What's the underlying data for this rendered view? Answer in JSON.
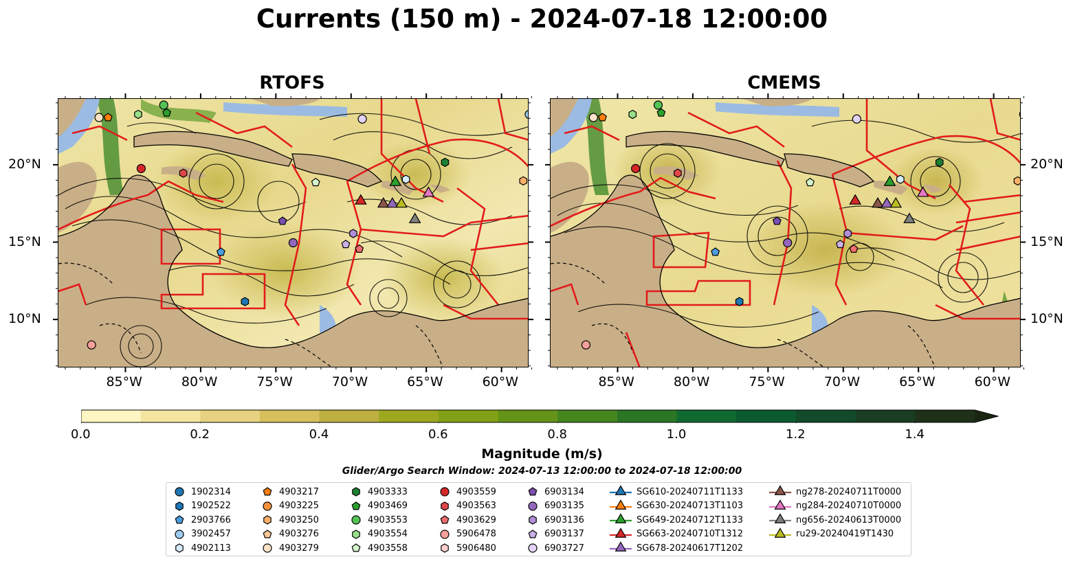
{
  "title": "Currents (150 m) - 2024-07-18 12:00:00",
  "panels": [
    {
      "title": "RTOFS"
    },
    {
      "title": "CMEMS"
    }
  ],
  "lon_ticks": [
    "85°W",
    "80°W",
    "75°W",
    "70°W",
    "65°W",
    "60°W"
  ],
  "lat_ticks": [
    "20°N",
    "15°N",
    "10°N"
  ],
  "map_extent": {
    "lon": [
      -89.5,
      -58.2
    ],
    "lat": [
      6.9,
      24.3
    ]
  },
  "colorbar": {
    "label": "Magnitude (m/s)",
    "ticks": [
      "0.0",
      "0.2",
      "0.4",
      "0.6",
      "0.8",
      "1.0",
      "1.2",
      "1.4"
    ],
    "range": [
      0,
      1.5
    ],
    "extend": "max",
    "colors": [
      "#fdf6c3",
      "#f3e4a0",
      "#e6d280",
      "#d6bf5c",
      "#bdb040",
      "#9da81f",
      "#82a015",
      "#649318",
      "#45851e",
      "#2a7623",
      "#0f6930",
      "#0b5a30",
      "#124a2a",
      "#1a3c23",
      "#1e3018"
    ]
  },
  "search_window": "Glider/Argo Search Window: 2024-07-13 12:00:00 to 2024-07-18 12:00:00",
  "legend": {
    "columns": [
      [
        {
          "label": "1902314",
          "marker": "circle",
          "color": "#1f77b4"
        },
        {
          "label": "1902522",
          "marker": "hexagon",
          "color": "#1f77b4"
        },
        {
          "label": "2903766",
          "marker": "pentagon",
          "color": "#4a9ee0"
        },
        {
          "label": "3902457",
          "marker": "circle",
          "color": "#9fcbee"
        },
        {
          "label": "4902113",
          "marker": "hexagon",
          "color": "#d6ebfb"
        }
      ],
      [
        {
          "label": "4903217",
          "marker": "pentagon",
          "color": "#ff7f0e"
        },
        {
          "label": "4903225",
          "marker": "circle",
          "color": "#f8903a"
        },
        {
          "label": "4903250",
          "marker": "hexagon",
          "color": "#fbb06a"
        },
        {
          "label": "4903276",
          "marker": "pentagon",
          "color": "#fcc995"
        },
        {
          "label": "4903279",
          "marker": "circle",
          "color": "#fde3c7"
        }
      ],
      [
        {
          "label": "4903333",
          "marker": "hexagon",
          "color": "#1d7f34"
        },
        {
          "label": "4903469",
          "marker": "pentagon",
          "color": "#2ca02c"
        },
        {
          "label": "4903553",
          "marker": "circle",
          "color": "#55c255"
        },
        {
          "label": "4903554",
          "marker": "hexagon",
          "color": "#98df8a"
        },
        {
          "label": "4903558",
          "marker": "pentagon",
          "color": "#d4f5cc"
        }
      ],
      [
        {
          "label": "4903559",
          "marker": "circle",
          "color": "#d62728"
        },
        {
          "label": "4903563",
          "marker": "hexagon",
          "color": "#e04848"
        },
        {
          "label": "4903629",
          "marker": "pentagon",
          "color": "#ee6d6d"
        },
        {
          "label": "5906478",
          "marker": "circle",
          "color": "#f5a09a"
        },
        {
          "label": "5906480",
          "marker": "hexagon",
          "color": "#fbd0cc"
        }
      ],
      [
        {
          "label": "6903134",
          "marker": "pentagon",
          "color": "#7b4fb0"
        },
        {
          "label": "6903135",
          "marker": "circle",
          "color": "#9467bd"
        },
        {
          "label": "6903136",
          "marker": "hexagon",
          "color": "#b08fd6"
        },
        {
          "label": "6903137",
          "marker": "pentagon",
          "color": "#c9b1e6"
        },
        {
          "label": "6903727",
          "marker": "circle",
          "color": "#e2d3f5"
        }
      ],
      [
        {
          "label": "SG610-20240711T1133",
          "marker": "triangle",
          "color": "#1f77b4"
        },
        {
          "label": "SG630-20240713T1103",
          "marker": "triangle",
          "color": "#ff7f0e"
        },
        {
          "label": "SG649-20240712T1133",
          "marker": "triangle",
          "color": "#2ca02c"
        },
        {
          "label": "SG663-20240710T1312",
          "marker": "triangle",
          "color": "#d62728"
        },
        {
          "label": "SG678-20240617T1202",
          "marker": "triangle",
          "color": "#9467bd"
        }
      ],
      [
        {
          "label": "ng278-20240711T0000",
          "marker": "triangle",
          "color": "#8c564b"
        },
        {
          "label": "ng284-20240710T0000",
          "marker": "triangle",
          "color": "#e377c2"
        },
        {
          "label": "ng656-20240613T0000",
          "marker": "triangle",
          "color": "#7f7f7f"
        },
        {
          "label": "ru29-20240419T1430",
          "marker": "triangle",
          "color": "#bcbd22"
        }
      ]
    ]
  },
  "platforms_on_map": [
    {
      "label": "3902457",
      "lon": -58.2,
      "lat": 23.3
    },
    {
      "label": "4903279",
      "lon": -86.8,
      "lat": 23.1
    },
    {
      "label": "4903217",
      "lon": -86.2,
      "lat": 23.1
    },
    {
      "label": "4903554",
      "lon": -84.2,
      "lat": 23.3
    },
    {
      "label": "4903553",
      "lon": -82.5,
      "lat": 23.9
    },
    {
      "label": "4903469",
      "lon": -82.3,
      "lat": 23.4
    },
    {
      "label": "6903727",
      "lon": -69.3,
      "lat": 23.0
    },
    {
      "label": "4903559",
      "lon": -84.0,
      "lat": 19.8
    },
    {
      "label": "4903563",
      "lon": -81.2,
      "lat": 19.5
    },
    {
      "label": "4903333",
      "lon": -63.8,
      "lat": 20.2
    },
    {
      "label": "4903250",
      "lon": -58.6,
      "lat": 19.0
    },
    {
      "label": "4903558",
      "lon": -72.4,
      "lat": 18.9
    },
    {
      "label": "4902113",
      "lon": -66.4,
      "lat": 19.1
    },
    {
      "label": "6903134",
      "lon": -74.6,
      "lat": 16.4
    },
    {
      "label": "6903135",
      "lon": -73.9,
      "lat": 15.0
    },
    {
      "label": "2903766",
      "lon": -78.7,
      "lat": 14.4
    },
    {
      "label": "6903137",
      "lon": -70.4,
      "lat": 14.9
    },
    {
      "label": "6903136",
      "lon": -69.9,
      "lat": 15.6
    },
    {
      "label": "4903629",
      "lon": -69.5,
      "lat": 14.6
    },
    {
      "label": "1902522",
      "lon": -77.1,
      "lat": 11.2
    },
    {
      "label": "5906478",
      "lon": -87.3,
      "lat": 8.4
    },
    {
      "label": "SG649-20240712T1133",
      "lon": -67.1,
      "lat": 18.9
    },
    {
      "label": "SG663-20240710T1312",
      "lon": -69.4,
      "lat": 17.7
    },
    {
      "label": "ng278-20240711T0000",
      "lon": -67.9,
      "lat": 17.5
    },
    {
      "label": "SG678-20240617T1202",
      "lon": -67.3,
      "lat": 17.5
    },
    {
      "label": "ru29-20240419T1430",
      "lon": -66.7,
      "lat": 17.5
    },
    {
      "label": "ng284-20240710T0000",
      "lon": -64.9,
      "lat": 18.2
    },
    {
      "label": "ng656-20240613T0000",
      "lon": -65.8,
      "lat": 16.5
    }
  ]
}
